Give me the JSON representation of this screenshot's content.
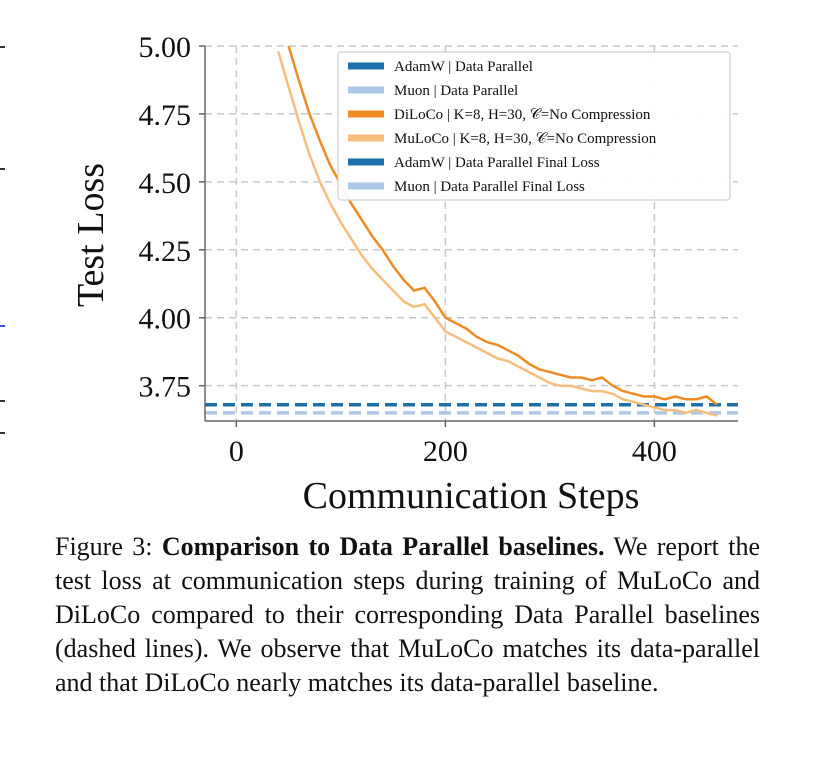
{
  "chart_data": {
    "type": "line",
    "ylabel": "Test Loss",
    "xlabel": "Communication Steps",
    "xlim": [
      -30,
      480
    ],
    "ylim": [
      3.62,
      5.0
    ],
    "xticks": [
      0,
      200,
      400
    ],
    "yticks": [
      3.75,
      4.0,
      4.25,
      4.5,
      4.75,
      5.0
    ],
    "ytick_labels": [
      "3.75",
      "4.00",
      "4.25",
      "4.50",
      "4.75",
      "5.00"
    ],
    "xtick_labels": [
      "0",
      "200",
      "400"
    ],
    "grid": true,
    "legend_position": "top-right",
    "series": [
      {
        "name": "AdamW | Data Parallel",
        "color": "#1f6fa8",
        "style": "solid",
        "x": [],
        "y": []
      },
      {
        "name": "Muon | Data Parallel",
        "color": "#aec7e8",
        "style": "solid",
        "x": [],
        "y": []
      },
      {
        "name": "DiLoCo | K=8, H=30, 𝒞=No Compression",
        "color": "#f08a24",
        "style": "solid",
        "x": [
          50,
          60,
          70,
          80,
          90,
          100,
          110,
          120,
          130,
          140,
          150,
          160,
          170,
          180,
          190,
          200,
          210,
          220,
          230,
          240,
          250,
          260,
          270,
          280,
          290,
          300,
          310,
          320,
          330,
          340,
          350,
          360,
          370,
          380,
          390,
          400,
          410,
          420,
          430,
          440,
          450,
          460
        ],
        "y": [
          5.0,
          4.87,
          4.75,
          4.65,
          4.56,
          4.49,
          4.42,
          4.36,
          4.3,
          4.25,
          4.19,
          4.14,
          4.1,
          4.11,
          4.06,
          4.0,
          3.98,
          3.96,
          3.93,
          3.91,
          3.9,
          3.88,
          3.86,
          3.83,
          3.81,
          3.8,
          3.79,
          3.78,
          3.78,
          3.77,
          3.78,
          3.75,
          3.73,
          3.72,
          3.71,
          3.71,
          3.7,
          3.71,
          3.7,
          3.7,
          3.71,
          3.68
        ]
      },
      {
        "name": "MuLoCo | K=8, H=30, 𝒞=No Compression",
        "color": "#f7bd7e",
        "style": "solid",
        "x": [
          40,
          50,
          60,
          70,
          80,
          90,
          100,
          110,
          120,
          130,
          140,
          150,
          160,
          170,
          180,
          190,
          200,
          210,
          220,
          230,
          240,
          250,
          260,
          270,
          280,
          290,
          300,
          310,
          320,
          330,
          340,
          350,
          360,
          370,
          380,
          390,
          400,
          410,
          420,
          430,
          440,
          450,
          460
        ],
        "y": [
          4.98,
          4.85,
          4.72,
          4.6,
          4.5,
          4.42,
          4.35,
          4.29,
          4.23,
          4.18,
          4.14,
          4.1,
          4.06,
          4.04,
          4.05,
          4.0,
          3.95,
          3.93,
          3.91,
          3.89,
          3.87,
          3.85,
          3.84,
          3.82,
          3.8,
          3.78,
          3.76,
          3.75,
          3.75,
          3.74,
          3.73,
          3.73,
          3.72,
          3.7,
          3.69,
          3.68,
          3.67,
          3.66,
          3.66,
          3.65,
          3.66,
          3.65,
          3.64
        ]
      },
      {
        "name": "AdamW | Data Parallel Final Loss",
        "color": "#1f6fa8",
        "style": "dashed",
        "hline": 3.68
      },
      {
        "name": "Muon | Data Parallel Final Loss",
        "color": "#aec7e8",
        "style": "dashed",
        "hline": 3.65
      }
    ]
  },
  "caption": {
    "label": "Figure 3:",
    "bold": "Comparison to Data Parallel baselines.",
    "text": "We report the test loss at communication steps during training of MuLoCo and DiLoCo compared to their corresponding Data Parallel baselines (dashed lines).  We observe that MuLoCo matches its data-parallel and that DiLoCo nearly matches its data-parallel baseline."
  }
}
